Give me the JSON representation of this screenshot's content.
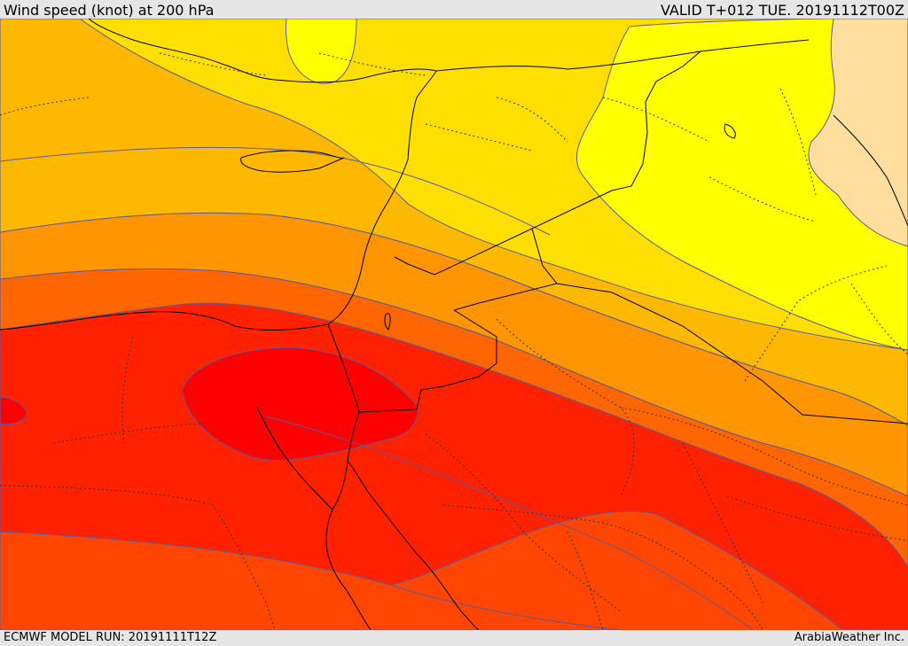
{
  "header": {
    "title": "Wind speed (knot) at 200 hPa",
    "valid": "VALID T+012 TUE. 20191112T00Z"
  },
  "footer": {
    "model_run": "ECMWF MODEL RUN: 20191111T12Z",
    "credit": "ArabiaWeather Inc."
  },
  "colors": {
    "band_1": "#ffde9e",
    "band_2": "#ffff00",
    "band_3": "#ffdf00",
    "band_4": "#ffb800",
    "band_5": "#ff9500",
    "band_6": "#ff6600",
    "band_7": "#ff4500",
    "band_8": "#ff2100",
    "band_9": "#ff0000",
    "contour": "#5a5aa0",
    "border": "#000000"
  }
}
